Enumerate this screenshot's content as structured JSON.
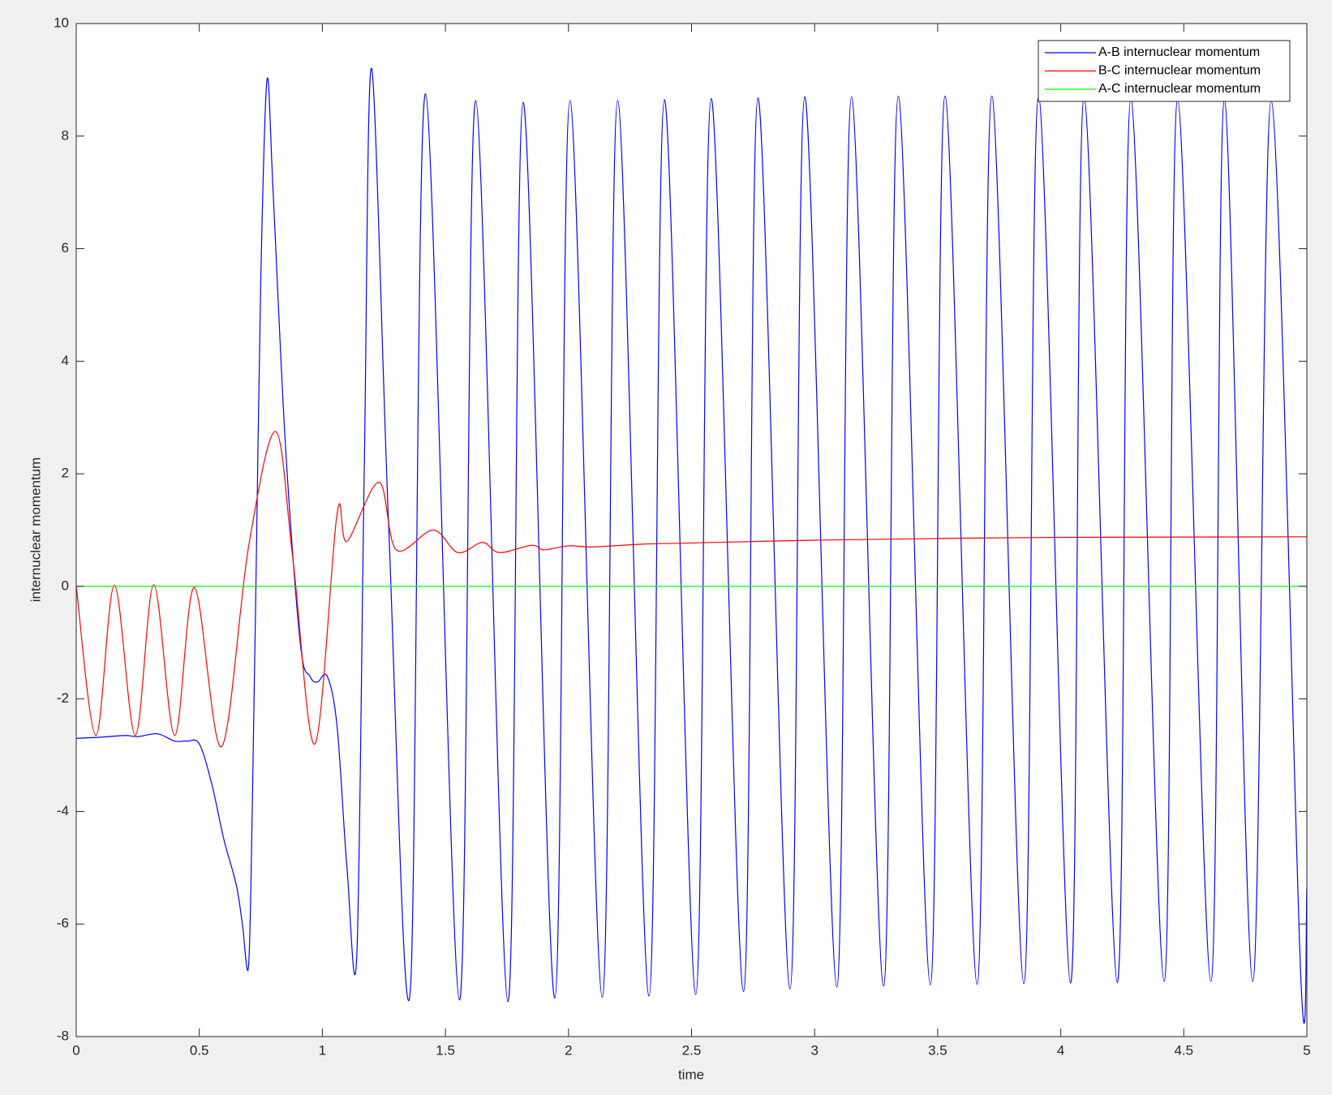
{
  "chart_data": {
    "type": "line",
    "xlabel": "time",
    "ylabel": "internuclear momentum",
    "xlim": [
      0,
      5
    ],
    "ylim": [
      -8,
      10
    ],
    "xticks": [
      0,
      0.5,
      1,
      1.5,
      2,
      2.5,
      3,
      3.5,
      4,
      4.5,
      5
    ],
    "yticks": [
      -8,
      -6,
      -4,
      -2,
      0,
      2,
      4,
      6,
      8,
      10
    ],
    "legend": "upper right",
    "series": [
      {
        "name": "A-B internuclear momentum",
        "color": "#0000ff",
        "x": [
          0,
          0.1,
          0.2,
          0.25,
          0.33,
          0.4,
          0.45,
          0.5,
          0.55,
          0.6,
          0.65,
          0.675,
          0.7,
          0.715,
          0.73,
          0.75,
          0.775,
          0.8,
          0.85,
          0.91,
          0.95,
          0.98,
          1.02,
          1.06,
          1.1,
          1.14,
          1.17,
          1.2,
          1.27,
          1.357,
          1.419,
          1.557,
          1.623,
          1.754,
          1.816,
          1.944,
          2.006,
          2.137,
          2.2,
          2.327,
          2.39,
          2.517,
          2.58,
          2.711,
          2.77,
          2.9,
          2.96,
          3.09,
          3.15,
          3.28,
          3.34,
          3.47,
          3.53,
          3.66,
          3.72,
          3.85,
          3.91,
          4.04,
          4.095,
          4.23,
          4.285,
          4.42,
          4.475,
          4.61,
          4.665,
          4.78,
          4.855,
          4.976,
          5.0
        ],
        "values": [
          -2.7,
          -2.68,
          -2.65,
          -2.67,
          -2.62,
          -2.75,
          -2.75,
          -2.8,
          -3.5,
          -4.5,
          -5.3,
          -6.0,
          -6.75,
          -4.0,
          0,
          5.5,
          9.0,
          7.0,
          2.5,
          -1.0,
          -1.6,
          -1.7,
          -1.6,
          -2.5,
          -5.0,
          -6.55,
          2.0,
          9.2,
          1.0,
          -7.2,
          8.75,
          -7.35,
          8.63,
          -7.38,
          8.6,
          -7.32,
          8.63,
          -7.3,
          8.63,
          -7.28,
          8.65,
          -7.25,
          8.67,
          -7.2,
          8.68,
          -7.15,
          8.7,
          -7.12,
          8.7,
          -7.1,
          8.71,
          -7.08,
          8.71,
          -7.07,
          8.71,
          -7.06,
          8.7,
          -7.05,
          8.68,
          -7.04,
          8.66,
          -7.02,
          8.65,
          -7.02,
          8.64,
          -7.02,
          8.63,
          -7.0,
          -5.35
        ]
      },
      {
        "name": "B-C internuclear momentum",
        "color": "#ff0000",
        "x": [
          0,
          0.08,
          0.155,
          0.24,
          0.315,
          0.4,
          0.48,
          0.59,
          0.7,
          0.81,
          0.88,
          0.97,
          1.06,
          1.1,
          1.23,
          1.3,
          1.45,
          1.55,
          1.65,
          1.72,
          1.85,
          1.9,
          2.0,
          2.1,
          2.3,
          2.5,
          3.0,
          3.5,
          4.0,
          5.0
        ],
        "values": [
          0,
          -2.65,
          0.02,
          -2.65,
          0.03,
          -2.65,
          -0.02,
          -2.85,
          0.7,
          2.75,
          0.5,
          -2.8,
          1.3,
          0.8,
          1.85,
          0.65,
          1.0,
          0.6,
          0.78,
          0.6,
          0.73,
          0.65,
          0.72,
          0.7,
          0.75,
          0.77,
          0.82,
          0.85,
          0.87,
          0.88
        ]
      },
      {
        "name": "A-C internuclear momentum",
        "color": "#00ff00",
        "x": [
          0,
          5
        ],
        "values": [
          0,
          0
        ]
      }
    ]
  }
}
